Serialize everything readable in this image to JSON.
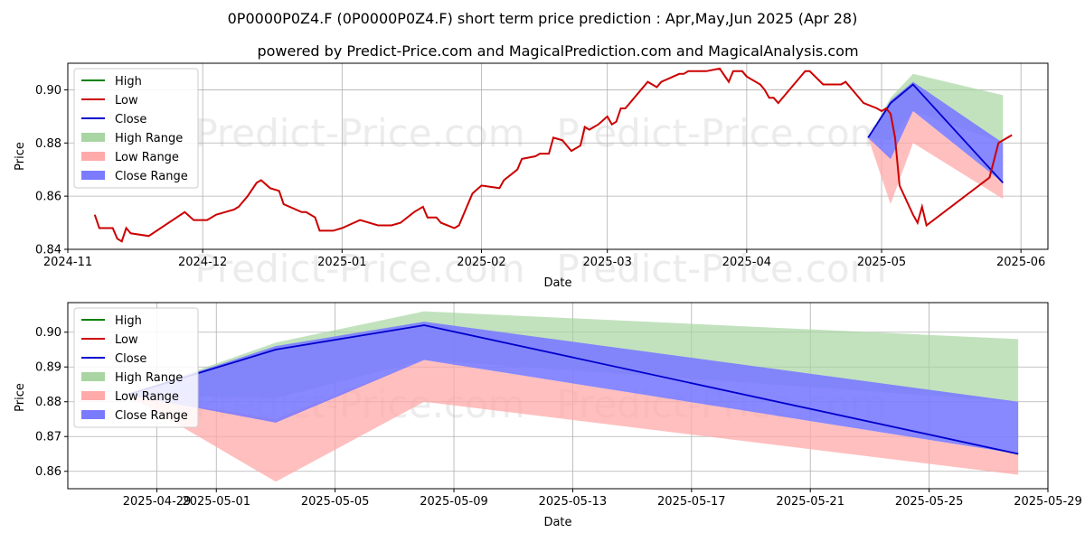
{
  "title": "0P0000P0Z4.F (0P0000P0Z4.F) short term price prediction : Apr,May,Jun 2025 (Apr 28)",
  "subtitle": "powered by Predict-Price.com and MagicalPrediction.com and MagicalAnalysis.com",
  "watermark": "Predict-Price.com",
  "legend_labels": [
    "High",
    "Low",
    "Close",
    "High Range",
    "Low Range",
    "Close Range"
  ],
  "colors": {
    "high": "#008000",
    "low": "#cc0000",
    "close": "#0000cc",
    "high_range": "#a8d5a2",
    "low_range": "#ffaaaa",
    "close_range": "#7b7bff"
  },
  "chart_data": [
    {
      "type": "line",
      "name": "history",
      "xlabel": "Date",
      "ylabel": "Price",
      "xlim": [
        "2024-11-01",
        "2025-06-07"
      ],
      "ylim": [
        0.84,
        0.91
      ],
      "x_ticks": [
        "2024-11",
        "2024-12",
        "2025-01",
        "2025-02",
        "2025-03",
        "2025-04",
        "2025-05",
        "2025-06"
      ],
      "y_ticks": [
        0.84,
        0.86,
        0.88,
        0.9
      ],
      "grid": true,
      "legend": "top-left",
      "low_history": [
        [
          "2024-11-07",
          0.853
        ],
        [
          "2024-11-08",
          0.848
        ],
        [
          "2024-11-11",
          0.848
        ],
        [
          "2024-11-12",
          0.844
        ],
        [
          "2024-11-13",
          0.843
        ],
        [
          "2024-11-14",
          0.848
        ],
        [
          "2024-11-15",
          0.846
        ],
        [
          "2024-11-19",
          0.845
        ],
        [
          "2024-11-27",
          0.854
        ],
        [
          "2024-11-29",
          0.851
        ],
        [
          "2024-12-02",
          0.851
        ],
        [
          "2024-12-04",
          0.853
        ],
        [
          "2024-12-06",
          0.854
        ],
        [
          "2024-12-08",
          0.855
        ],
        [
          "2024-12-09",
          0.856
        ],
        [
          "2024-12-11",
          0.86
        ],
        [
          "2024-12-13",
          0.865
        ],
        [
          "2024-12-14",
          0.866
        ],
        [
          "2024-12-16",
          0.863
        ],
        [
          "2024-12-18",
          0.862
        ],
        [
          "2024-12-19",
          0.857
        ],
        [
          "2024-12-23",
          0.854
        ],
        [
          "2024-12-24",
          0.854
        ],
        [
          "2024-12-26",
          0.852
        ],
        [
          "2024-12-27",
          0.847
        ],
        [
          "2024-12-30",
          0.847
        ],
        [
          "2025-01-01",
          0.848
        ],
        [
          "2025-01-05",
          0.851
        ],
        [
          "2025-01-09",
          0.849
        ],
        [
          "2025-01-12",
          0.849
        ],
        [
          "2025-01-14",
          0.85
        ],
        [
          "2025-01-17",
          0.854
        ],
        [
          "2025-01-19",
          0.856
        ],
        [
          "2025-01-20",
          0.852
        ],
        [
          "2025-01-22",
          0.852
        ],
        [
          "2025-01-23",
          0.85
        ],
        [
          "2025-01-26",
          0.848
        ],
        [
          "2025-01-27",
          0.849
        ],
        [
          "2025-01-30",
          0.861
        ],
        [
          "2025-02-01",
          0.864
        ],
        [
          "2025-02-05",
          0.863
        ],
        [
          "2025-02-06",
          0.866
        ],
        [
          "2025-02-09",
          0.87
        ],
        [
          "2025-02-10",
          0.874
        ],
        [
          "2025-02-13",
          0.875
        ],
        [
          "2025-02-14",
          0.876
        ],
        [
          "2025-02-16",
          0.876
        ],
        [
          "2025-02-17",
          0.882
        ],
        [
          "2025-02-19",
          0.881
        ],
        [
          "2025-02-21",
          0.877
        ],
        [
          "2025-02-23",
          0.879
        ],
        [
          "2025-02-24",
          0.886
        ],
        [
          "2025-02-25",
          0.885
        ],
        [
          "2025-02-27",
          0.887
        ],
        [
          "2025-03-01",
          0.89
        ],
        [
          "2025-03-02",
          0.887
        ],
        [
          "2025-03-03",
          0.888
        ],
        [
          "2025-03-04",
          0.893
        ],
        [
          "2025-03-05",
          0.893
        ],
        [
          "2025-03-10",
          0.903
        ],
        [
          "2025-03-12",
          0.901
        ],
        [
          "2025-03-13",
          0.903
        ],
        [
          "2025-03-17",
          0.906
        ],
        [
          "2025-03-18",
          0.906
        ],
        [
          "2025-03-19",
          0.907
        ],
        [
          "2025-03-23",
          0.907
        ],
        [
          "2025-03-26",
          0.908
        ],
        [
          "2025-03-28",
          0.903
        ],
        [
          "2025-03-29",
          0.907
        ],
        [
          "2025-03-31",
          0.907
        ],
        [
          "2025-04-01",
          0.905
        ],
        [
          "2025-04-04",
          0.902
        ],
        [
          "2025-04-05",
          0.9
        ],
        [
          "2025-04-06",
          0.897
        ],
        [
          "2025-04-07",
          0.897
        ],
        [
          "2025-04-08",
          0.895
        ],
        [
          "2025-04-12",
          0.903
        ],
        [
          "2025-04-14",
          0.907
        ],
        [
          "2025-04-15",
          0.907
        ],
        [
          "2025-04-18",
          0.902
        ],
        [
          "2025-04-20",
          0.902
        ],
        [
          "2025-04-22",
          0.902
        ],
        [
          "2025-04-23",
          0.903
        ],
        [
          "2025-04-25",
          0.899
        ],
        [
          "2025-04-27",
          0.895
        ],
        [
          "2025-04-30",
          0.893
        ],
        [
          "2025-05-01",
          0.892
        ],
        [
          "2025-05-02",
          0.893
        ],
        [
          "2025-05-03",
          0.891
        ],
        [
          "2025-05-04",
          0.882
        ],
        [
          "2025-05-05",
          0.864
        ],
        [
          "2025-05-08",
          0.853
        ],
        [
          "2025-05-09",
          0.85
        ],
        [
          "2025-05-10",
          0.856
        ],
        [
          "2025-05-11",
          0.849
        ],
        [
          "2025-05-25",
          0.867
        ],
        [
          "2025-05-27",
          0.88
        ],
        [
          "2025-05-30",
          0.883
        ]
      ]
    },
    {
      "type": "area",
      "name": "forecast",
      "xlabel": "Date",
      "ylabel": "Price",
      "xlim": [
        "2025-04-26",
        "2025-05-29"
      ],
      "ylim": [
        0.855,
        0.9085
      ],
      "x_ticks": [
        "2025-04-29",
        "2025-05-01",
        "2025-05-05",
        "2025-05-09",
        "2025-05-13",
        "2025-05-17",
        "2025-05-21",
        "2025-05-25",
        "2025-05-29"
      ],
      "y_ticks": [
        0.86,
        0.87,
        0.88,
        0.89,
        0.9
      ],
      "grid": true,
      "legend": "top-left",
      "x": [
        "2025-04-28",
        "2025-05-03",
        "2025-05-08",
        "2025-05-28"
      ],
      "high_range": [
        [
          0.882,
          0.882
        ],
        [
          0.881,
          0.897
        ],
        [
          0.892,
          0.906
        ],
        [
          0.88,
          0.898
        ]
      ],
      "low_range": [
        [
          0.882,
          0.882
        ],
        [
          0.857,
          0.875
        ],
        [
          0.88,
          0.892
        ],
        [
          0.859,
          0.865
        ]
      ],
      "close_range": [
        [
          0.882,
          0.882
        ],
        [
          0.874,
          0.896
        ],
        [
          0.892,
          0.903
        ],
        [
          0.865,
          0.88
        ]
      ],
      "close": [
        0.882,
        0.895,
        0.902,
        0.865
      ]
    }
  ]
}
